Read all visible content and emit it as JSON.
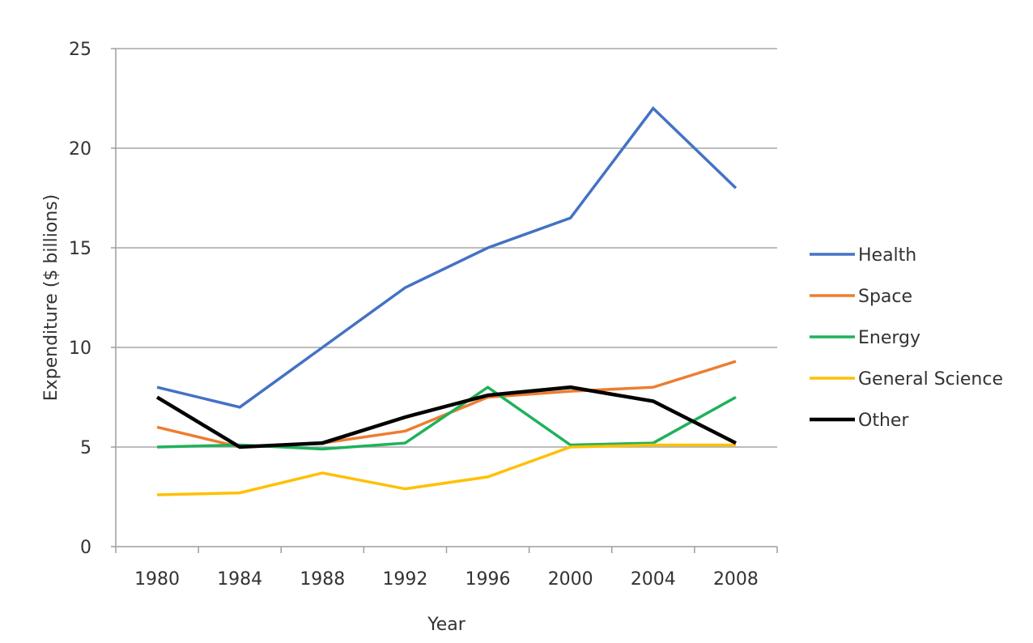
{
  "chart_data": {
    "type": "line",
    "title": "",
    "xlabel": "Year",
    "ylabel": "Expenditure  ($ billions)",
    "x": [
      "1980",
      "1984",
      "1988",
      "1992",
      "1996",
      "2000",
      "2004",
      "2008"
    ],
    "ylim": [
      0,
      25
    ],
    "yticks": [
      "0",
      "5",
      "10",
      "15",
      "20",
      "25"
    ],
    "grid": true,
    "legend_position": "right",
    "series": [
      {
        "name": "Health",
        "color": "#4472C4",
        "values": [
          8,
          7,
          10,
          13,
          15,
          16.5,
          22,
          18
        ]
      },
      {
        "name": "Space",
        "color": "#ED7D31",
        "values": [
          6,
          5,
          5.2,
          5.8,
          7.5,
          7.8,
          8,
          9.3
        ]
      },
      {
        "name": "Energy",
        "color": "#1EB25A",
        "values": [
          5,
          5.1,
          4.9,
          5.2,
          8,
          5.1,
          5.2,
          7.5
        ]
      },
      {
        "name": "General Science",
        "color": "#FFC000",
        "values": [
          2.6,
          2.7,
          3.7,
          2.9,
          3.5,
          5.0,
          5.1,
          5.1
        ]
      },
      {
        "name": "Other",
        "color": "#000000",
        "values": [
          7.5,
          5,
          5.2,
          6.5,
          7.6,
          8,
          7.3,
          5.2
        ]
      }
    ]
  }
}
